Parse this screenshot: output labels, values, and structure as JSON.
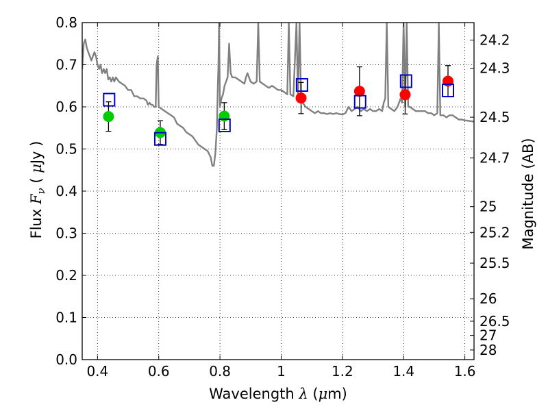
{
  "chart_data": {
    "type": "scatter",
    "title": "",
    "xlabel": {
      "prefix": "Wavelength  ",
      "symbol": "λ",
      "unit_open": " (",
      "unit_mu": "μ",
      "unit_close": "m)"
    },
    "ylabel": {
      "prefix": "Flux  ",
      "symbol": "F",
      "subscript": "ν",
      "unit_open": "  ( ",
      "unit_mu": "μ",
      "unit_close": "Jy )"
    },
    "y2label": "Magnitude (AB)",
    "xlim": [
      0.35,
      1.63
    ],
    "ylim": [
      0.0,
      0.8
    ],
    "grid": true,
    "grid_style": "dotted",
    "x_ticks": [
      {
        "value": 0.4,
        "label": "0.4"
      },
      {
        "value": 0.6,
        "label": "0.6"
      },
      {
        "value": 0.8,
        "label": "0.8"
      },
      {
        "value": 1.0,
        "label": "1"
      },
      {
        "value": 1.2,
        "label": "1.2"
      },
      {
        "value": 1.4,
        "label": "1.4"
      },
      {
        "value": 1.6,
        "label": "1.6"
      }
    ],
    "y_ticks": [
      {
        "value": 0.0,
        "label": "0.0"
      },
      {
        "value": 0.1,
        "label": "0.1"
      },
      {
        "value": 0.2,
        "label": "0.2"
      },
      {
        "value": 0.3,
        "label": "0.3"
      },
      {
        "value": 0.4,
        "label": "0.4"
      },
      {
        "value": 0.5,
        "label": "0.5"
      },
      {
        "value": 0.6,
        "label": "0.6"
      },
      {
        "value": 0.7,
        "label": "0.7"
      },
      {
        "value": 0.8,
        "label": "0.8"
      }
    ],
    "y2_ticks": [
      {
        "mag": 24.2,
        "label": "24.2"
      },
      {
        "mag": 24.3,
        "label": "24.3"
      },
      {
        "mag": 24.5,
        "label": "24.5"
      },
      {
        "mag": 24.7,
        "label": "24.7"
      },
      {
        "mag": 25.0,
        "label": "25"
      },
      {
        "mag": 25.2,
        "label": "25.2"
      },
      {
        "mag": 25.5,
        "label": "25.5"
      },
      {
        "mag": 26.0,
        "label": "26"
      },
      {
        "mag": 26.5,
        "label": "26.5"
      },
      {
        "mag": 27.0,
        "label": "27"
      },
      {
        "mag": 28.0,
        "label": "28"
      }
    ],
    "series": [
      {
        "type": "line",
        "color": "#808080",
        "points": [
          [
            0.35,
            0.69
          ],
          [
            0.355,
            0.75
          ],
          [
            0.36,
            0.76
          ],
          [
            0.365,
            0.74
          ],
          [
            0.37,
            0.73
          ],
          [
            0.375,
            0.72
          ],
          [
            0.38,
            0.71
          ],
          [
            0.385,
            0.72
          ],
          [
            0.39,
            0.73
          ],
          [
            0.395,
            0.72
          ],
          [
            0.4,
            0.7
          ],
          [
            0.405,
            0.69
          ],
          [
            0.41,
            0.7
          ],
          [
            0.415,
            0.68
          ],
          [
            0.42,
            0.69
          ],
          [
            0.425,
            0.68
          ],
          [
            0.43,
            0.69
          ],
          [
            0.435,
            0.665
          ],
          [
            0.44,
            0.67
          ],
          [
            0.445,
            0.66
          ],
          [
            0.45,
            0.67
          ],
          [
            0.455,
            0.66
          ],
          [
            0.46,
            0.67
          ],
          [
            0.47,
            0.66
          ],
          [
            0.48,
            0.655
          ],
          [
            0.49,
            0.65
          ],
          [
            0.5,
            0.64
          ],
          [
            0.51,
            0.64
          ],
          [
            0.52,
            0.625
          ],
          [
            0.53,
            0.625
          ],
          [
            0.54,
            0.62
          ],
          [
            0.55,
            0.62
          ],
          [
            0.56,
            0.615
          ],
          [
            0.565,
            0.605
          ],
          [
            0.57,
            0.61
          ],
          [
            0.575,
            0.605
          ],
          [
            0.58,
            0.605
          ],
          [
            0.585,
            0.6
          ],
          [
            0.59,
            0.6
          ],
          [
            0.593,
            0.7
          ],
          [
            0.597,
            0.72
          ],
          [
            0.6,
            0.6
          ],
          [
            0.61,
            0.595
          ],
          [
            0.62,
            0.59
          ],
          [
            0.63,
            0.585
          ],
          [
            0.64,
            0.58
          ],
          [
            0.65,
            0.575
          ],
          [
            0.66,
            0.56
          ],
          [
            0.67,
            0.555
          ],
          [
            0.68,
            0.55
          ],
          [
            0.69,
            0.54
          ],
          [
            0.7,
            0.535
          ],
          [
            0.71,
            0.53
          ],
          [
            0.72,
            0.52
          ],
          [
            0.73,
            0.51
          ],
          [
            0.74,
            0.505
          ],
          [
            0.75,
            0.5
          ],
          [
            0.76,
            0.495
          ],
          [
            0.77,
            0.48
          ],
          [
            0.775,
            0.46
          ],
          [
            0.78,
            0.46
          ],
          [
            0.785,
            0.49
          ],
          [
            0.79,
            0.55
          ],
          [
            0.793,
            0.65
          ],
          [
            0.795,
            0.7
          ],
          [
            0.797,
            0.8
          ],
          [
            0.8,
            0.6
          ],
          [
            0.805,
            0.62
          ],
          [
            0.81,
            0.63
          ],
          [
            0.815,
            0.65
          ],
          [
            0.82,
            0.66
          ],
          [
            0.825,
            0.67
          ],
          [
            0.83,
            0.75
          ],
          [
            0.835,
            0.68
          ],
          [
            0.84,
            0.67
          ],
          [
            0.85,
            0.67
          ],
          [
            0.86,
            0.665
          ],
          [
            0.87,
            0.66
          ],
          [
            0.88,
            0.655
          ],
          [
            0.885,
            0.67
          ],
          [
            0.89,
            0.68
          ],
          [
            0.895,
            0.67
          ],
          [
            0.9,
            0.66
          ],
          [
            0.91,
            0.655
          ],
          [
            0.92,
            0.66
          ],
          [
            0.925,
            0.8
          ],
          [
            0.93,
            0.66
          ],
          [
            0.94,
            0.655
          ],
          [
            0.95,
            0.65
          ],
          [
            0.96,
            0.645
          ],
          [
            0.97,
            0.65
          ],
          [
            0.98,
            0.645
          ],
          [
            0.99,
            0.64
          ],
          [
            1.0,
            0.64
          ],
          [
            1.01,
            0.635
          ],
          [
            1.02,
            0.63
          ],
          [
            1.025,
            0.8
          ],
          [
            1.03,
            0.63
          ],
          [
            1.04,
            0.625
          ],
          [
            1.05,
            0.8
          ],
          [
            1.055,
            0.62
          ],
          [
            1.06,
            0.8
          ],
          [
            1.065,
            0.62
          ],
          [
            1.07,
            0.61
          ],
          [
            1.08,
            0.6
          ],
          [
            1.09,
            0.595
          ],
          [
            1.1,
            0.59
          ],
          [
            1.11,
            0.585
          ],
          [
            1.12,
            0.59
          ],
          [
            1.13,
            0.585
          ],
          [
            1.14,
            0.585
          ],
          [
            1.15,
            0.583
          ],
          [
            1.16,
            0.585
          ],
          [
            1.17,
            0.583
          ],
          [
            1.18,
            0.585
          ],
          [
            1.19,
            0.583
          ],
          [
            1.2,
            0.582
          ],
          [
            1.21,
            0.585
          ],
          [
            1.22,
            0.6
          ],
          [
            1.23,
            0.59
          ],
          [
            1.24,
            0.595
          ],
          [
            1.25,
            0.6
          ],
          [
            1.26,
            0.59
          ],
          [
            1.27,
            0.595
          ],
          [
            1.28,
            0.59
          ],
          [
            1.29,
            0.595
          ],
          [
            1.3,
            0.59
          ],
          [
            1.31,
            0.59
          ],
          [
            1.32,
            0.595
          ],
          [
            1.33,
            0.59
          ],
          [
            1.335,
            0.61
          ],
          [
            1.34,
            0.62
          ],
          [
            1.345,
            0.8
          ],
          [
            1.35,
            0.6
          ],
          [
            1.36,
            0.595
          ],
          [
            1.37,
            0.59
          ],
          [
            1.38,
            0.6
          ],
          [
            1.39,
            0.62
          ],
          [
            1.395,
            0.61
          ],
          [
            1.4,
            0.8
          ],
          [
            1.405,
            0.6
          ],
          [
            1.41,
            0.8
          ],
          [
            1.415,
            0.6
          ],
          [
            1.42,
            0.6
          ],
          [
            1.43,
            0.595
          ],
          [
            1.44,
            0.59
          ],
          [
            1.45,
            0.59
          ],
          [
            1.46,
            0.59
          ],
          [
            1.47,
            0.59
          ],
          [
            1.48,
            0.585
          ],
          [
            1.49,
            0.585
          ],
          [
            1.5,
            0.58
          ],
          [
            1.51,
            0.585
          ],
          [
            1.515,
            0.8
          ],
          [
            1.52,
            0.58
          ],
          [
            1.53,
            0.58
          ],
          [
            1.54,
            0.575
          ],
          [
            1.55,
            0.58
          ],
          [
            1.56,
            0.58
          ],
          [
            1.57,
            0.575
          ],
          [
            1.58,
            0.57
          ],
          [
            1.59,
            0.57
          ],
          [
            1.6,
            0.568
          ],
          [
            1.61,
            0.567
          ],
          [
            1.62,
            0.566
          ],
          [
            1.63,
            0.565
          ]
        ]
      },
      {
        "type": "errorbar",
        "color": "#000000",
        "points": [
          {
            "x": 0.436,
            "y": 0.577,
            "err": 0.035
          },
          {
            "x": 0.605,
            "y": 0.539,
            "err": 0.028
          },
          {
            "x": 0.814,
            "y": 0.578,
            "err": 0.032
          },
          {
            "x": 1.065,
            "y": 0.621,
            "err": 0.037
          },
          {
            "x": 1.256,
            "y": 0.637,
            "err": 0.058
          },
          {
            "x": 1.405,
            "y": 0.629,
            "err": 0.046
          },
          {
            "x": 1.545,
            "y": 0.661,
            "err": 0.037
          }
        ]
      },
      {
        "type": "scatter",
        "marker": "circle",
        "color": "#00cc00",
        "points": [
          {
            "x": 0.436,
            "y": 0.577
          },
          {
            "x": 0.605,
            "y": 0.539
          },
          {
            "x": 0.814,
            "y": 0.578
          }
        ]
      },
      {
        "type": "scatter",
        "marker": "circle",
        "color": "#ff0000",
        "points": [
          {
            "x": 1.065,
            "y": 0.621
          },
          {
            "x": 1.256,
            "y": 0.637
          },
          {
            "x": 1.405,
            "y": 0.629
          },
          {
            "x": 1.545,
            "y": 0.661
          }
        ]
      },
      {
        "type": "scatter",
        "marker": "square-open",
        "color": "#0000cc",
        "points": [
          {
            "x": 0.438,
            "y": 0.617
          },
          {
            "x": 0.605,
            "y": 0.524
          },
          {
            "x": 0.815,
            "y": 0.556
          },
          {
            "x": 1.068,
            "y": 0.652
          },
          {
            "x": 1.258,
            "y": 0.612
          },
          {
            "x": 1.408,
            "y": 0.661
          },
          {
            "x": 1.545,
            "y": 0.639
          }
        ]
      }
    ]
  }
}
